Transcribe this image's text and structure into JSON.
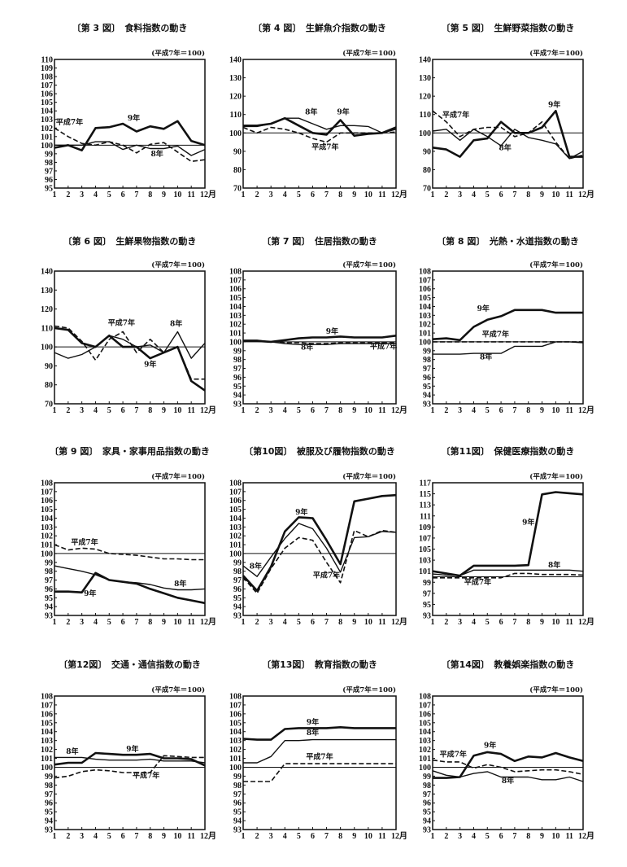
{
  "unit_label": "(平成7年＝100)",
  "x_ticks": [
    "1",
    "2",
    "3",
    "4",
    "5",
    "6",
    "7",
    "8",
    "9",
    "10",
    "11",
    "12月"
  ],
  "series_names": [
    "平成7年",
    "8年",
    "9年"
  ],
  "colors": {
    "line": "#111111",
    "background": "#ffffff"
  },
  "chart_data": [
    {
      "type": "line",
      "title": "〔第 3 図〕　食料指数の動き",
      "ylim": [
        95,
        110
      ],
      "yticks": [
        95,
        96,
        97,
        98,
        99,
        100,
        101,
        102,
        103,
        104,
        105,
        106,
        107,
        108,
        109,
        110
      ],
      "reference": 100,
      "series": [
        {
          "name": "平成7年",
          "style": "dashed",
          "values": [
            102,
            101,
            100.2,
            100,
            100.4,
            100,
            99.1,
            100.1,
            100.3,
            99.2,
            98.1,
            98.3
          ],
          "label_at": [
            2.1,
            102.4
          ]
        },
        {
          "name": "8年",
          "style": "thin",
          "values": [
            100,
            100,
            100,
            100.4,
            100.4,
            99.5,
            100,
            99.6,
            99.6,
            99.9,
            98.8,
            99.5
          ],
          "label_at": [
            8.5,
            98.7
          ]
        },
        {
          "name": "9年",
          "style": "thick",
          "values": [
            99.7,
            100,
            99.4,
            102,
            102.1,
            102.5,
            101.6,
            102.2,
            101.9,
            102.8,
            100.5,
            100
          ],
          "label_at": [
            6.8,
            102.9
          ]
        }
      ]
    },
    {
      "type": "line",
      "title": "〔第 4 図〕　生鮮魚介指数の動き",
      "ylim": [
        70,
        140
      ],
      "yticks": [
        70,
        80,
        90,
        100,
        110,
        120,
        130,
        140
      ],
      "reference": 100,
      "series": [
        {
          "name": "平成7年",
          "style": "dashed",
          "values": [
            103,
            100,
            103,
            102,
            100,
            97,
            95,
            100,
            100,
            100,
            100,
            100.5
          ],
          "label_at": [
            6.9,
            91
          ]
        },
        {
          "name": "8年",
          "style": "thin",
          "values": [
            103.5,
            103.5,
            105,
            108,
            108,
            105,
            102,
            104,
            104,
            103.5,
            100,
            102
          ],
          "label_at": [
            5.9,
            110
          ]
        },
        {
          "name": "9年",
          "style": "thick",
          "values": [
            104,
            104,
            105,
            108,
            104,
            100,
            99,
            107,
            98.5,
            99.5,
            100,
            103
          ],
          "label_at": [
            8.2,
            110
          ]
        }
      ]
    },
    {
      "type": "line",
      "title": "〔第 5 図〕　生鮮野菜指数の動き",
      "ylim": [
        70,
        140
      ],
      "yticks": [
        70,
        80,
        90,
        100,
        110,
        120,
        130,
        140
      ],
      "reference": 100,
      "series": [
        {
          "name": "平成7年",
          "style": "dashed",
          "values": [
            112,
            106,
            98,
            102,
            103,
            103,
            98,
            100,
            106,
            95,
            86,
            88
          ],
          "label_at": [
            2.7,
            108.5
          ]
        },
        {
          "name": "8年",
          "style": "thin",
          "values": [
            101,
            102,
            96,
            102,
            98,
            93,
            102,
            97.5,
            96,
            94,
            86,
            90
          ],
          "label_at": [
            6.3,
            90.5
          ]
        },
        {
          "name": "9年",
          "style": "thick",
          "values": [
            92,
            91,
            87,
            96,
            97,
            106,
            100,
            100,
            103,
            112,
            87,
            87
          ],
          "label_at": [
            9.9,
            114
          ]
        }
      ]
    },
    {
      "type": "line",
      "title": "〔第 6 図〕　生鮮果物指数の動き",
      "ylim": [
        70,
        140
      ],
      "yticks": [
        70,
        80,
        90,
        100,
        110,
        120,
        130,
        140
      ],
      "reference": 100,
      "series": [
        {
          "name": "平成7年",
          "style": "dashed",
          "values": [
            111,
            110,
            103,
            93,
            104,
            108,
            97,
            104,
            97,
            100,
            83,
            83
          ],
          "label_at": [
            5.9,
            111.5
          ]
        },
        {
          "name": "8年",
          "style": "thin",
          "values": [
            97,
            94,
            96,
            100,
            106,
            104,
            100,
            101,
            97,
            108,
            94,
            102
          ],
          "label_at": [
            9.9,
            111
          ]
        },
        {
          "name": "9年",
          "style": "thick",
          "values": [
            110,
            109,
            102,
            100,
            106,
            100,
            100,
            94,
            97,
            100,
            82,
            77
          ],
          "label_at": [
            8,
            89.5
          ]
        }
      ]
    },
    {
      "type": "line",
      "title": "〔第 7 図〕　住居指数の動き",
      "ylim": [
        93,
        108
      ],
      "yticks": [
        93,
        94,
        95,
        96,
        97,
        98,
        99,
        100,
        101,
        102,
        103,
        104,
        105,
        106,
        107,
        108
      ],
      "reference": 100,
      "series": [
        {
          "name": "平成7年",
          "style": "dashed",
          "values": [
            100.1,
            100.1,
            100,
            99.9,
            99.9,
            99.8,
            99.8,
            99.9,
            99.9,
            99.9,
            99.9,
            99.9
          ],
          "label_at": [
            11.1,
            99.2
          ]
        },
        {
          "name": "8年",
          "style": "thin",
          "values": [
            100.2,
            100.2,
            100,
            99.8,
            99.7,
            99.7,
            99.7,
            99.8,
            99.8,
            99.8,
            99.8,
            99.8
          ],
          "label_at": [
            5.6,
            99.1
          ]
        },
        {
          "name": "9年",
          "style": "thick",
          "values": [
            100.1,
            100.1,
            100,
            100.2,
            100.4,
            100.5,
            100.5,
            100.6,
            100.5,
            100.5,
            100.5,
            100.7
          ],
          "label_at": [
            7.4,
            100.9
          ]
        }
      ]
    },
    {
      "type": "line",
      "title": "〔第 8 図〕　光熱・水道指数の動き",
      "ylim": [
        93,
        108
      ],
      "yticks": [
        93,
        94,
        95,
        96,
        97,
        98,
        99,
        100,
        101,
        102,
        103,
        104,
        105,
        106,
        107,
        108
      ],
      "reference": 100,
      "series": [
        {
          "name": "平成7年",
          "style": "dashed",
          "values": [
            100,
            100,
            100,
            100,
            100,
            100,
            100,
            100,
            100,
            100,
            100,
            100
          ],
          "label_at": [
            5.6,
            100.6
          ]
        },
        {
          "name": "8年",
          "style": "thin",
          "values": [
            98.6,
            98.6,
            98.6,
            98.7,
            98.7,
            98.7,
            99.5,
            99.5,
            99.5,
            100,
            100,
            99.9
          ],
          "label_at": [
            4.9,
            98
          ]
        },
        {
          "name": "9年",
          "style": "thick",
          "values": [
            100.3,
            100.4,
            100.2,
            101.7,
            102.5,
            102.9,
            103.6,
            103.6,
            103.6,
            103.3,
            103.3,
            103.3
          ],
          "label_at": [
            4.7,
            103.5
          ]
        }
      ]
    },
    {
      "type": "line",
      "title": "〔第 9 図〕　家具・家事用品指数の動き",
      "ylim": [
        93,
        108
      ],
      "yticks": [
        93,
        94,
        95,
        96,
        97,
        98,
        99,
        100,
        101,
        102,
        103,
        104,
        105,
        106,
        107,
        108
      ],
      "reference": 100,
      "series": [
        {
          "name": "平成7年",
          "style": "dashed",
          "values": [
            101,
            100.4,
            100.6,
            100.5,
            100,
            99.9,
            99.8,
            99.6,
            99.4,
            99.4,
            99.3,
            99.3
          ],
          "label_at": [
            3.2,
            101
          ]
        },
        {
          "name": "8年",
          "style": "thin",
          "values": [
            98.6,
            98.3,
            98,
            97.6,
            97,
            96.8,
            96.7,
            96.5,
            96.1,
            95.9,
            95.9,
            96
          ],
          "label_at": [
            10.2,
            96.3
          ]
        },
        {
          "name": "9年",
          "style": "thick",
          "values": [
            95.7,
            95.7,
            95.6,
            97.8,
            97,
            96.8,
            96.6,
            96,
            95.5,
            95,
            94.7,
            94.4
          ],
          "label_at": [
            3.6,
            95.2
          ]
        }
      ]
    },
    {
      "type": "line",
      "title": "〔第10図〕　被服及び履物指数の動き",
      "ylim": [
        93,
        108
      ],
      "yticks": [
        93,
        94,
        95,
        96,
        97,
        98,
        99,
        100,
        101,
        102,
        103,
        104,
        105,
        106,
        107,
        108
      ],
      "reference": 100,
      "series": [
        {
          "name": "平成7年",
          "style": "dashed",
          "values": [
            97.3,
            95.5,
            98.3,
            100.6,
            101.8,
            101.5,
            99,
            96.7,
            102.6,
            101.9,
            102.6,
            102.4
          ],
          "label_at": [
            7,
            97.3
          ]
        },
        {
          "name": "8年",
          "style": "thin",
          "values": [
            98.6,
            97.4,
            99.6,
            101.7,
            103.4,
            102.8,
            100.6,
            97.9,
            101.8,
            101.9,
            102.5,
            102.4
          ],
          "label_at": [
            1.9,
            98.3
          ]
        },
        {
          "name": "9年",
          "style": "thick",
          "values": [
            97.5,
            95.8,
            98.5,
            102.5,
            104.1,
            104,
            101.5,
            98.8,
            105.9,
            106.2,
            106.5,
            106.6
          ],
          "label_at": [
            5.2,
            104.4
          ]
        }
      ]
    },
    {
      "type": "line",
      "title": "〔第11図〕　保健医療指数の動き",
      "ylim": [
        93,
        117
      ],
      "yticks": [
        93,
        95,
        97,
        99,
        101,
        103,
        105,
        107,
        109,
        111,
        113,
        115,
        117
      ],
      "reference": 100,
      "series": [
        {
          "name": "平成7年",
          "style": "dashed",
          "values": [
            99.8,
            99.8,
            99.8,
            99.8,
            99.8,
            99.8,
            100.6,
            100.6,
            100.4,
            100.4,
            100.4,
            100.3
          ],
          "label_at": [
            4.3,
            98.6
          ]
        },
        {
          "name": "8年",
          "style": "thin",
          "values": [
            100.5,
            100.3,
            100.2,
            101.2,
            101.2,
            101.2,
            101.2,
            101.2,
            101.2,
            101.2,
            101.2,
            101
          ],
          "label_at": [
            9.9,
            101.7
          ]
        },
        {
          "name": "9年",
          "style": "thick",
          "values": [
            101,
            100.6,
            100.2,
            102,
            102,
            102,
            102,
            102.1,
            114.9,
            115.3,
            115.1,
            114.9
          ],
          "label_at": [
            8,
            109.4
          ]
        }
      ]
    },
    {
      "type": "line",
      "title": "〔第12図〕　交通・通信指数の動き",
      "ylim": [
        93,
        108
      ],
      "yticks": [
        93,
        94,
        95,
        96,
        97,
        98,
        99,
        100,
        101,
        102,
        103,
        104,
        105,
        106,
        107,
        108
      ],
      "reference": 100,
      "series": [
        {
          "name": "平成7年",
          "style": "dashed",
          "values": [
            98.8,
            99,
            99.5,
            99.7,
            99.6,
            99.4,
            99.4,
            99.4,
            101.3,
            101.2,
            101.1,
            101.1
          ],
          "label_at": [
            7.7,
            98.8
          ]
        },
        {
          "name": "8年",
          "style": "thin",
          "values": [
            101.1,
            101.1,
            101.1,
            100.9,
            100.8,
            100.8,
            100.8,
            100.9,
            100.7,
            100.7,
            100.7,
            100.5
          ],
          "label_at": [
            2.3,
            101.5
          ]
        },
        {
          "name": "9年",
          "style": "thick",
          "values": [
            100.3,
            100.5,
            100.5,
            101.6,
            101.5,
            101.4,
            101.4,
            101.5,
            101,
            101,
            100.9,
            100.2
          ],
          "label_at": [
            6.7,
            101.8
          ]
        }
      ]
    },
    {
      "type": "line",
      "title": "〔第13図〕　教育指数の動き",
      "ylim": [
        93,
        108
      ],
      "yticks": [
        93,
        94,
        95,
        96,
        97,
        98,
        99,
        100,
        101,
        102,
        103,
        104,
        105,
        106,
        107,
        108
      ],
      "reference": 100,
      "series": [
        {
          "name": "平成7年",
          "style": "dashed",
          "values": [
            98.4,
            98.4,
            98.4,
            100.4,
            100.4,
            100.4,
            100.4,
            100.4,
            100.4,
            100.4,
            100.4,
            100.4
          ],
          "label_at": [
            6.5,
            100.9
          ]
        },
        {
          "name": "8年",
          "style": "thin",
          "values": [
            100.5,
            100.5,
            101.2,
            103,
            103,
            103.1,
            103.1,
            103.1,
            103.1,
            103.1,
            103.1,
            103.1
          ],
          "label_at": [
            6,
            103.6
          ]
        },
        {
          "name": "9年",
          "style": "thick",
          "values": [
            103.2,
            103.1,
            103.1,
            104.3,
            104.4,
            104.4,
            104.4,
            104.5,
            104.4,
            104.4,
            104.4,
            104.4
          ],
          "label_at": [
            6,
            104.8
          ]
        }
      ]
    },
    {
      "type": "line",
      "title": "〔第14図〕　教養娯楽指数の動き",
      "ylim": [
        93,
        108
      ],
      "yticks": [
        93,
        94,
        95,
        96,
        97,
        98,
        99,
        100,
        101,
        102,
        103,
        104,
        105,
        106,
        107,
        108
      ],
      "reference": 100,
      "series": [
        {
          "name": "平成7年",
          "style": "dashed",
          "values": [
            100.8,
            100.6,
            100.6,
            99.9,
            100.3,
            100,
            99.5,
            99.6,
            99.7,
            99.7,
            99.5,
            99.2
          ],
          "label_at": [
            2.5,
            101.2
          ]
        },
        {
          "name": "8年",
          "style": "thin",
          "values": [
            99.6,
            99.1,
            98.9,
            99.3,
            99.5,
            98.9,
            98.9,
            98.9,
            98.6,
            98.6,
            98.9,
            98.4
          ],
          "label_at": [
            6.5,
            98.2
          ]
        },
        {
          "name": "9年",
          "style": "thick",
          "values": [
            98.8,
            98.8,
            98.9,
            101.3,
            101.7,
            101.5,
            100.7,
            101.2,
            101.1,
            101.6,
            101.1,
            100.7
          ],
          "label_at": [
            5.2,
            102.2
          ]
        }
      ]
    }
  ]
}
